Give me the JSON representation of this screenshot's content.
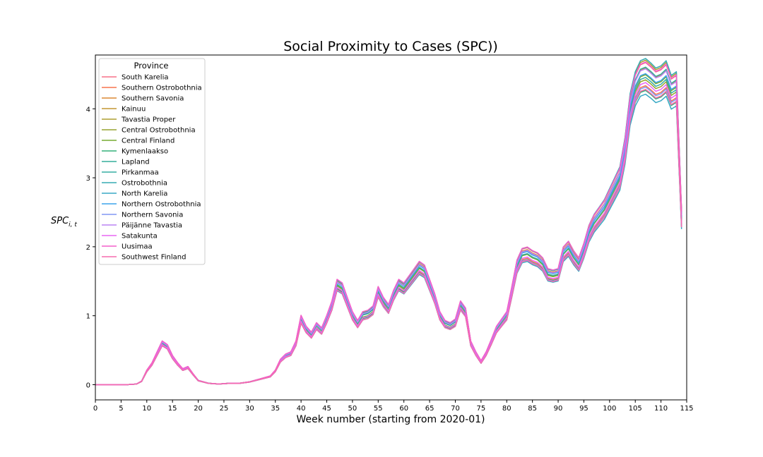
{
  "chart_data": {
    "type": "line",
    "title": "Social Proximity to Cases (SPC))",
    "xlabel": "Week number (starting from 2020-01)",
    "ylabel": "SPC",
    "ylabel_subscript": "i, t",
    "xlim": [
      0,
      115
    ],
    "ylim": [
      -0.22,
      4.78
    ],
    "xticks": [
      0,
      5,
      10,
      15,
      20,
      25,
      30,
      35,
      40,
      45,
      50,
      55,
      60,
      65,
      70,
      75,
      80,
      85,
      90,
      95,
      100,
      105,
      110,
      115
    ],
    "yticks": [
      0,
      1,
      2,
      3,
      4
    ],
    "grid": false,
    "legend_title": "Province",
    "legend_position": "upper-left",
    "x": [
      0,
      2,
      4,
      6,
      8,
      9,
      10,
      11,
      12,
      13,
      14,
      15,
      16,
      17,
      18,
      19,
      20,
      22,
      24,
      26,
      28,
      30,
      32,
      34,
      35,
      36,
      37,
      38,
      39,
      40,
      41,
      42,
      43,
      44,
      45,
      46,
      47,
      48,
      49,
      50,
      51,
      52,
      53,
      54,
      55,
      56,
      57,
      58,
      59,
      60,
      61,
      62,
      63,
      64,
      65,
      66,
      67,
      68,
      69,
      70,
      71,
      72,
      73,
      74,
      75,
      76,
      77,
      78,
      79,
      80,
      81,
      82,
      83,
      84,
      85,
      86,
      87,
      88,
      89,
      90,
      91,
      92,
      93,
      94,
      95,
      96,
      97,
      98,
      99,
      100,
      101,
      102,
      103,
      104,
      105,
      106,
      107,
      108,
      109,
      110,
      111,
      112,
      113,
      114
    ],
    "base_curve": [
      0,
      0,
      0,
      0,
      0.01,
      0.05,
      0.2,
      0.3,
      0.45,
      0.6,
      0.55,
      0.4,
      0.3,
      0.22,
      0.25,
      0.15,
      0.06,
      0.02,
      0.01,
      0.02,
      0.02,
      0.04,
      0.08,
      0.12,
      0.2,
      0.35,
      0.42,
      0.45,
      0.6,
      0.95,
      0.8,
      0.72,
      0.85,
      0.78,
      0.95,
      1.15,
      1.45,
      1.4,
      1.2,
      1.0,
      0.88,
      1.0,
      1.02,
      1.08,
      1.35,
      1.2,
      1.1,
      1.3,
      1.45,
      1.4,
      1.5,
      1.6,
      1.7,
      1.65,
      1.45,
      1.25,
      1.0,
      0.88,
      0.85,
      0.9,
      1.15,
      1.05,
      0.6,
      0.45,
      0.33,
      0.45,
      0.62,
      0.8,
      0.9,
      1.0,
      1.35,
      1.72,
      1.88,
      1.9,
      1.85,
      1.82,
      1.75,
      1.6,
      1.58,
      1.6,
      1.9,
      1.98,
      1.85,
      1.75,
      1.95,
      2.2,
      2.35,
      2.45,
      2.55,
      2.7,
      2.85,
      3.0,
      3.4,
      4.0,
      4.3,
      4.45,
      4.48,
      4.42,
      4.35,
      4.38,
      4.45,
      4.25,
      4.3,
      2.4
    ],
    "series": [
      {
        "name": "South Karelia",
        "color": "#f77189",
        "scale": 1.04,
        "offset": 0.01
      },
      {
        "name": "Southern Ostrobothnia",
        "color": "#f7754f",
        "scale": 0.97,
        "offset": -0.01
      },
      {
        "name": "Southern Savonia",
        "color": "#dc8932",
        "scale": 1.02,
        "offset": 0.02
      },
      {
        "name": "Kainuu",
        "color": "#c39532",
        "scale": 0.96,
        "offset": -0.02
      },
      {
        "name": "Tavastia Proper",
        "color": "#ae9d31",
        "scale": 1.05,
        "offset": 0.0
      },
      {
        "name": "Central Ostrobothnia",
        "color": "#97a431",
        "scale": 0.98,
        "offset": 0.03
      },
      {
        "name": "Central Finland",
        "color": "#77ab31",
        "scale": 1.01,
        "offset": -0.03
      },
      {
        "name": "Kymenlaakso",
        "color": "#33b07a",
        "scale": 0.95,
        "offset": 0.01
      },
      {
        "name": "Lapland",
        "color": "#35ad9c",
        "scale": 1.03,
        "offset": -0.01
      },
      {
        "name": "Pirkanmaa",
        "color": "#36ada4",
        "scale": 0.99,
        "offset": 0.02
      },
      {
        "name": "Ostrobothnia",
        "color": "#37abb4",
        "scale": 1.06,
        "offset": -0.02
      },
      {
        "name": "North Karelia",
        "color": "#38a9c5",
        "scale": 0.94,
        "offset": 0.0
      },
      {
        "name": "Northern Ostrobothnia",
        "color": "#3ba3ec",
        "scale": 1.0,
        "offset": 0.03
      },
      {
        "name": "Northern Savonia",
        "color": "#8197f4",
        "scale": 0.97,
        "offset": -0.03
      },
      {
        "name": "Päijänne Tavastia",
        "color": "#bb83f4",
        "scale": 1.02,
        "offset": 0.01
      },
      {
        "name": "Satakunta",
        "color": "#e866f4",
        "scale": 0.98,
        "offset": -0.01
      },
      {
        "name": "Uusimaa",
        "color": "#f45fca",
        "scale": 1.04,
        "offset": 0.02
      },
      {
        "name": "Southwest Finland",
        "color": "#f66bad",
        "scale": 0.96,
        "offset": -0.02
      }
    ]
  }
}
